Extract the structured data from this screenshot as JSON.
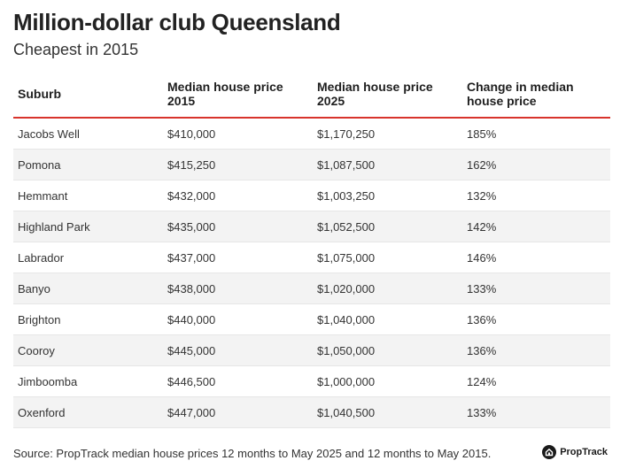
{
  "title": "Million-dollar club Queensland",
  "subtitle": "Cheapest in 2015",
  "chart_data": {
    "type": "table",
    "columns": [
      "Suburb",
      "Median house price\n2015",
      "Median house price\n2025",
      "Change in median\nhouse price"
    ],
    "rows": [
      [
        "Jacobs Well",
        "$410,000",
        "$1,170,250",
        "185%"
      ],
      [
        "Pomona",
        "$415,250",
        "$1,087,500",
        "162%"
      ],
      [
        "Hemmant",
        "$432,000",
        "$1,003,250",
        "132%"
      ],
      [
        "Highland Park",
        "$435,000",
        "$1,052,500",
        "142%"
      ],
      [
        "Labrador",
        "$437,000",
        "$1,075,000",
        "146%"
      ],
      [
        "Banyo",
        "$438,000",
        "$1,020,000",
        "133%"
      ],
      [
        "Brighton",
        "$440,000",
        "$1,040,000",
        "136%"
      ],
      [
        "Cooroy",
        "$445,000",
        "$1,050,000",
        "136%"
      ],
      [
        "Jimboomba",
        "$446,500",
        "$1,000,000",
        "124%"
      ],
      [
        "Oxenford",
        "$447,000",
        "$1,040,500",
        "133%"
      ]
    ]
  },
  "footer": {
    "source": "Source: PropTrack median house prices 12 months to May 2025 and 12 months to May 2015.",
    "brand": "PropTrack",
    "brand_icon": "proptrack-logo-icon"
  },
  "colors": {
    "header_rule": "#d8342c",
    "stripe": "#f3f3f3"
  }
}
